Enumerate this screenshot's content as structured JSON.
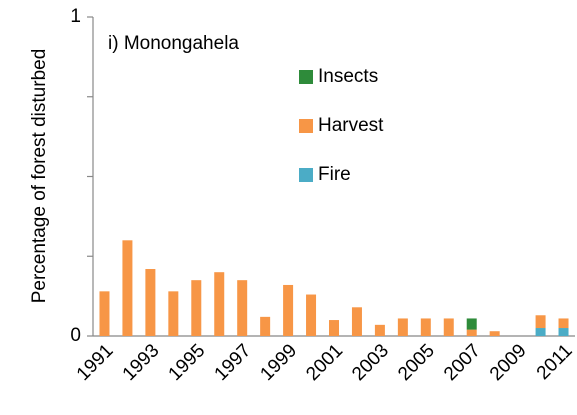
{
  "chart_data": {
    "type": "stacked_bar",
    "title": "i) Monongahela",
    "y_label": "Percentage of forest disturbed",
    "categories": [
      "1991",
      null,
      "1993",
      null,
      "1995",
      null,
      "1997",
      null,
      "1999",
      null,
      "2001",
      null,
      "2003",
      null,
      "2005",
      null,
      "2007",
      null,
      "2009",
      null,
      "2011"
    ],
    "series": [
      {
        "name": "Fire",
        "color": "#4bacc6",
        "values": [
          0,
          0,
          0,
          0,
          0,
          0,
          0,
          0,
          0,
          0,
          0,
          0,
          0,
          0,
          0,
          0,
          0,
          0,
          0,
          0.025,
          0.025
        ]
      },
      {
        "name": "Harvest",
        "color": "#f79646",
        "values": [
          0.14,
          0.3,
          0.21,
          0.14,
          0.175,
          0.2,
          0.175,
          0.06,
          0.16,
          0.13,
          0.05,
          0.09,
          0.035,
          0.055,
          0.055,
          0.055,
          0.02,
          0.015,
          0,
          0.04,
          0.03
        ]
      },
      {
        "name": "Insects",
        "color": "#2e8b3a",
        "values": [
          0,
          0,
          0,
          0,
          0,
          0,
          0,
          0,
          0,
          0,
          0,
          0,
          0,
          0,
          0,
          0,
          0.035,
          0,
          0,
          0,
          0
        ]
      }
    ],
    "legend_order": [
      "Insects",
      "Harvest",
      "Fire"
    ],
    "ylim": [
      0,
      1
    ],
    "yticks": [
      0,
      1
    ],
    "yminor": [
      0.25,
      0.5,
      0.75
    ]
  }
}
